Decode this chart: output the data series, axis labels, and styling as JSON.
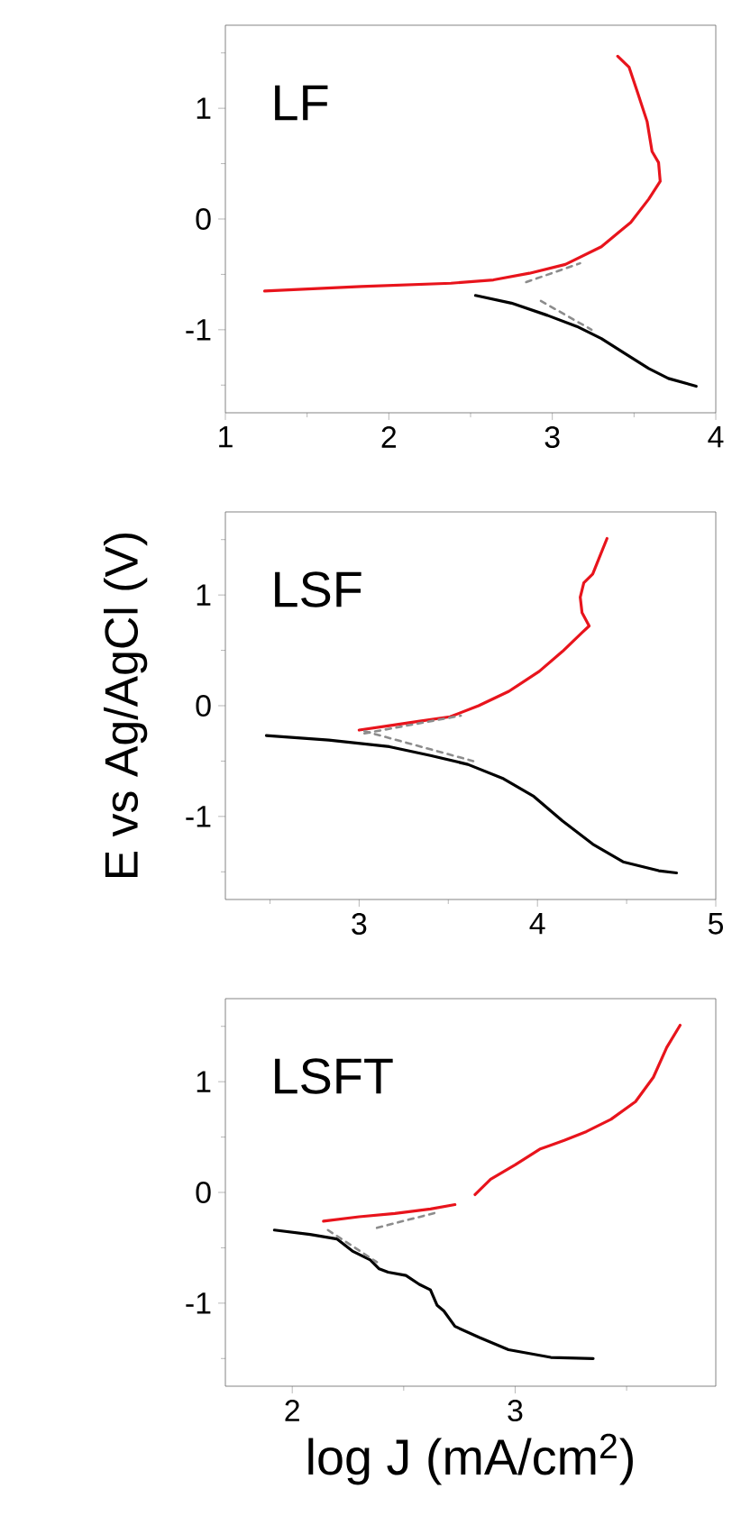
{
  "chart_data": [
    {
      "type": "line",
      "title": "LF",
      "xlim": [
        1,
        4
      ],
      "xticks": [
        1,
        2,
        3,
        4
      ],
      "ylim": [
        -1.75,
        1.75
      ],
      "yticks": [
        -1,
        0,
        1
      ],
      "tick_labels": "xy",
      "series": [
        {
          "color": "#e8141c",
          "line_style": "solid",
          "x": [
            1.24,
            1.83,
            2.38,
            2.64,
            2.86,
            3.08,
            3.3,
            3.48,
            3.59,
            3.66,
            3.65,
            3.61,
            3.58,
            3.52,
            3.47,
            3.4
          ],
          "values": [
            -0.65,
            -0.61,
            -0.58,
            -0.55,
            -0.49,
            -0.41,
            -0.25,
            -0.03,
            0.18,
            0.34,
            0.51,
            0.61,
            0.88,
            1.15,
            1.37,
            1.47
          ]
        },
        {
          "color": "#000000",
          "line_style": "solid",
          "x": [
            2.53,
            2.75,
            2.97,
            3.15,
            3.3,
            3.45,
            3.59,
            3.71,
            3.88
          ],
          "values": [
            -0.69,
            -0.76,
            -0.87,
            -0.97,
            -1.08,
            -1.22,
            -1.35,
            -1.44,
            -1.51
          ]
        },
        {
          "color": "#8c8c8c",
          "line_style": "dashed",
          "x": [
            2.84,
            3.17
          ],
          "values": [
            -0.57,
            -0.4
          ]
        },
        {
          "color": "#8c8c8c",
          "line_style": "dashed",
          "x": [
            2.93,
            3.24
          ],
          "values": [
            -0.74,
            -1.0
          ]
        }
      ]
    },
    {
      "type": "line",
      "title": "LSF",
      "ylabel": "E vs Ag/AgCl (V)",
      "xlim": [
        2.25,
        5
      ],
      "xticks": [
        3,
        4,
        5
      ],
      "ylim": [
        -1.75,
        1.75
      ],
      "yticks": [
        -1,
        0,
        1
      ],
      "series": [
        {
          "color": "#e8141c",
          "line_style": "solid",
          "x": [
            3.0,
            3.17,
            3.34,
            3.51,
            3.67,
            3.84,
            4.01,
            4.14,
            4.25,
            4.29,
            4.25,
            4.24,
            4.26,
            4.31,
            4.35,
            4.39
          ],
          "values": [
            -0.22,
            -0.18,
            -0.14,
            -0.1,
            0.0,
            0.13,
            0.31,
            0.49,
            0.66,
            0.72,
            0.84,
            0.98,
            1.11,
            1.19,
            1.35,
            1.51
          ]
        },
        {
          "color": "#000000",
          "line_style": "solid",
          "x": [
            2.48,
            2.83,
            3.17,
            3.4,
            3.61,
            3.81,
            3.98,
            4.14,
            4.31,
            4.48,
            4.68,
            4.78
          ],
          "values": [
            -0.27,
            -0.31,
            -0.37,
            -0.45,
            -0.53,
            -0.66,
            -0.82,
            -1.04,
            -1.25,
            -1.41,
            -1.49,
            -1.51
          ]
        },
        {
          "color": "#8c8c8c",
          "line_style": "dashed",
          "x": [
            3.03,
            3.57
          ],
          "values": [
            -0.25,
            -0.09
          ]
        },
        {
          "color": "#8c8c8c",
          "line_style": "dashed",
          "x": [
            3.03,
            3.64
          ],
          "values": [
            -0.23,
            -0.5
          ]
        }
      ]
    },
    {
      "type": "line",
      "title": "LSFT",
      "xlabel": "log J (mA/cm$^{2}$)",
      "xlim": [
        1.7,
        3.9
      ],
      "xticks": [
        2,
        3
      ],
      "ylim": [
        -1.75,
        1.75
      ],
      "yticks": [
        -1,
        0,
        1
      ],
      "series": [
        {
          "color": "#e8141c",
          "line_style": "solid",
          "x": [
            2.14,
            2.3,
            2.46,
            2.62,
            2.73,
            2.775,
            2.82,
            2.89,
            3.0,
            3.11,
            3.22,
            3.32,
            3.43,
            3.54,
            3.62,
            3.68,
            3.74
          ],
          "values": [
            -0.26,
            -0.22,
            -0.19,
            -0.15,
            -0.11,
            null,
            -0.02,
            0.12,
            0.25,
            0.39,
            0.47,
            0.55,
            0.66,
            0.82,
            1.04,
            1.31,
            1.51
          ]
        },
        {
          "color": "#000000",
          "line_style": "solid",
          "x": [
            1.92,
            2.08,
            2.2,
            2.27,
            2.35,
            2.39,
            2.43,
            2.51,
            2.57,
            2.62,
            2.65,
            2.68,
            2.73,
            2.84,
            2.97,
            3.16,
            3.35
          ],
          "values": [
            -0.34,
            -0.38,
            -0.42,
            -0.53,
            -0.61,
            -0.69,
            -0.72,
            -0.75,
            -0.83,
            -0.88,
            -1.02,
            -1.07,
            -1.21,
            -1.31,
            -1.42,
            -1.49,
            -1.5
          ]
        },
        {
          "color": "#8c8c8c",
          "line_style": "dashed",
          "x": [
            2.38,
            2.65
          ],
          "values": [
            -0.32,
            -0.18
          ]
        },
        {
          "color": "#8c8c8c",
          "line_style": "dashed",
          "x": [
            2.16,
            2.38
          ],
          "values": [
            -0.34,
            -0.63
          ]
        }
      ]
    }
  ]
}
